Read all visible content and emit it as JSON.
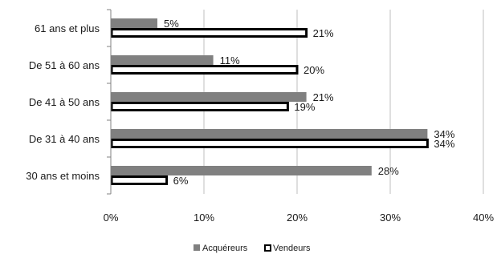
{
  "chart_data": {
    "type": "bar",
    "orientation": "horizontal",
    "categories": [
      "61 ans et plus",
      "De 51 à 60 ans",
      "De 41 à 50 ans",
      "De 31 à 40 ans",
      "30 ans et moins"
    ],
    "series": [
      {
        "name": "Acquéreurs",
        "values": [
          5,
          11,
          21,
          34,
          28
        ],
        "labels": [
          "5%",
          "11%",
          "21%",
          "34%",
          "28%"
        ],
        "color": "#808080",
        "style": "filled"
      },
      {
        "name": "Vendeurs",
        "values": [
          21,
          20,
          19,
          34,
          6
        ],
        "labels": [
          "21%",
          "20%",
          "19%",
          "34%",
          "6%"
        ],
        "color": "#000000",
        "style": "outline"
      }
    ],
    "xlim": [
      0,
      40
    ],
    "x_ticks": [
      0,
      10,
      20,
      30,
      40
    ],
    "x_tick_labels": [
      "0%",
      "10%",
      "20%",
      "30%",
      "40%"
    ],
    "grid": "vertical",
    "legend_position": "bottom"
  }
}
